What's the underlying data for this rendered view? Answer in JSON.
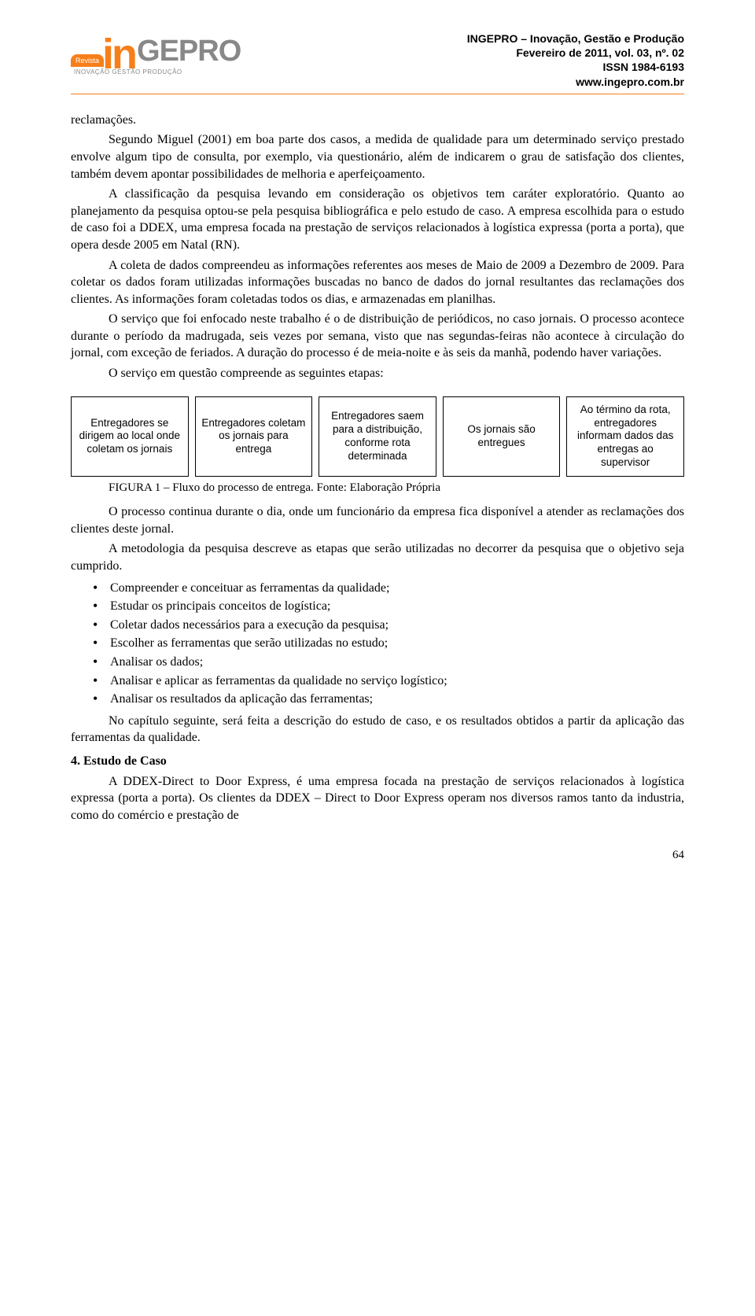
{
  "header": {
    "logo_in": "in",
    "logo_gepro": "GEPRO",
    "logo_badge": "Revista",
    "logo_sub": "INOVAÇÃO GESTÃO PRODUÇÃO",
    "line1": "INGEPRO – Inovação, Gestão e Produção",
    "line2": "Fevereiro de 2011, vol. 03, nº. 02",
    "line3": "ISSN 1984-6193",
    "line4": "www.ingepro.com.br"
  },
  "p1": "reclamações.",
  "p2": "Segundo Miguel (2001) em boa parte dos casos, a medida de qualidade para um determinado serviço prestado envolve algum tipo de consulta, por exemplo, via questionário, além de indicarem o grau de satisfação dos clientes, também devem apontar possibilidades de melhoria e aperfeiçoamento.",
  "p3": "A classificação da pesquisa levando em consideração os objetivos tem caráter exploratório. Quanto ao planejamento da pesquisa optou-se pela pesquisa bibliográfica e pelo estudo de caso. A empresa escolhida para o estudo de caso foi a DDEX, uma empresa focada na prestação de serviços relacionados à logística expressa (porta a porta), que opera desde 2005 em Natal (RN).",
  "p4": "A coleta de dados compreendeu as informações referentes aos meses de Maio de 2009 a Dezembro de 2009. Para coletar os dados foram utilizadas informações buscadas no banco de dados do jornal resultantes das reclamações dos clientes. As informações foram coletadas todos os dias, e armazenadas em planilhas.",
  "p5": "O serviço que foi enfocado neste trabalho é o de distribuição de periódicos, no caso jornais. O processo acontece durante o período da madrugada, seis vezes por semana, visto que nas segundas-feiras não acontece à circulação do jornal, com exceção de feriados. A duração do processo é de meia-noite e às seis da manhã, podendo haver variações.",
  "p6": "O serviço em questão compreende as seguintes etapas:",
  "flow": {
    "b1": "Entregadores se dirigem ao local onde coletam os jornais",
    "b2": "Entregadores coletam os jornais para entrega",
    "b3": "Entregadores saem para a distribuição, conforme rota determinada",
    "b4": "Os jornais são entregues",
    "b5": "Ao término da rota, entregadores informam dados das entregas ao supervisor"
  },
  "fig_caption": "FIGURA 1 – Fluxo do processo de entrega. Fonte: Elaboração Própria",
  "p7": "O processo continua durante o dia, onde um funcionário da empresa fica disponível a atender as reclamações dos clientes deste jornal.",
  "p8": "A metodologia da pesquisa descreve as etapas que serão utilizadas no decorrer da pesquisa que o objetivo seja cumprido.",
  "bullets": {
    "i1": "Compreender e conceituar as ferramentas da qualidade;",
    "i2": "Estudar os principais conceitos de logística;",
    "i3": "Coletar dados necessários para a execução da pesquisa;",
    "i4": "Escolher as ferramentas que serão utilizadas no estudo;",
    "i5": "Analisar os dados;",
    "i6": "Analisar e aplicar as ferramentas da qualidade no serviço logístico;",
    "i7": "Analisar os resultados da aplicação das ferramentas;"
  },
  "p9": "No capítulo seguinte, será feita a descrição do estudo de caso, e os resultados obtidos a partir da aplicação das ferramentas da qualidade.",
  "section_head": "4. Estudo de Caso",
  "p10": "A DDEX-Direct to Door Express, é uma empresa focada na prestação de serviços relacionados à logística expressa (porta a porta). Os clientes da DDEX – Direct to Door Express operam nos diversos ramos tanto da industria, como do comércio e prestação de",
  "page_num": "64",
  "colors": {
    "accent": "#f77f1a",
    "grey": "#888888",
    "text": "#000000",
    "bg": "#ffffff"
  }
}
